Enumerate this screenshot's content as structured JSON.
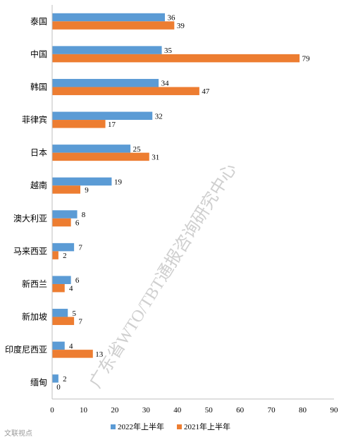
{
  "chart_data": {
    "type": "bar",
    "orientation": "horizontal",
    "categories": [
      "泰国",
      "中国",
      "韩国",
      "菲律宾",
      "日本",
      "越南",
      "澳大利亚",
      "马来西亚",
      "新西兰",
      "新加坡",
      "印度尼西亚",
      "缅甸"
    ],
    "series": [
      {
        "name": "2022年上半年",
        "color": "#5b9bd5",
        "values": [
          36,
          35,
          34,
          32,
          25,
          19,
          8,
          7,
          6,
          5,
          4,
          2
        ]
      },
      {
        "name": "2021年上半年",
        "color": "#ed7d31",
        "values": [
          39,
          79,
          47,
          17,
          31,
          9,
          6,
          2,
          4,
          7,
          13,
          0
        ]
      }
    ],
    "xlim": [
      0,
      90
    ],
    "xticks": [
      "0",
      "10",
      "20",
      "30",
      "40",
      "50",
      "60",
      "70",
      "80",
      "90"
    ],
    "grid": false,
    "legend_position": "bottom",
    "watermark": "广东省WTO/TBT通报咨询研究中心"
  },
  "corner_logo": "文联视点"
}
